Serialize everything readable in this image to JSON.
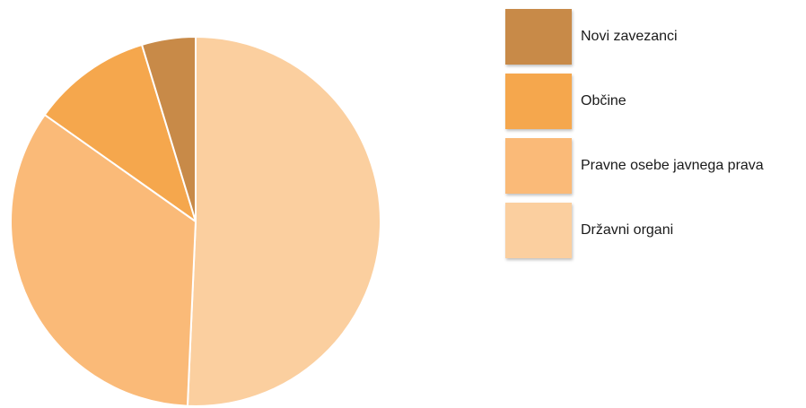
{
  "chart_data": {
    "type": "pie",
    "title": "",
    "slices": [
      {
        "label": "Državni organi",
        "value": 50.7,
        "color": "#FBCF9F"
      },
      {
        "label": "Pravne osebe javnega prava",
        "value": 34.1,
        "color": "#FABA78"
      },
      {
        "label": "Občine",
        "value": 10.5,
        "color": "#F5A74D"
      },
      {
        "label": "Novi zavezanci",
        "value": 4.7,
        "color": "#C88A48"
      }
    ],
    "start_angle_deg": 0,
    "direction": "clockwise",
    "legend_position": "right",
    "legend_order": [
      "Novi zavezanci",
      "Občine",
      "Pravne osebe javnega prava",
      "Državni organi"
    ]
  }
}
